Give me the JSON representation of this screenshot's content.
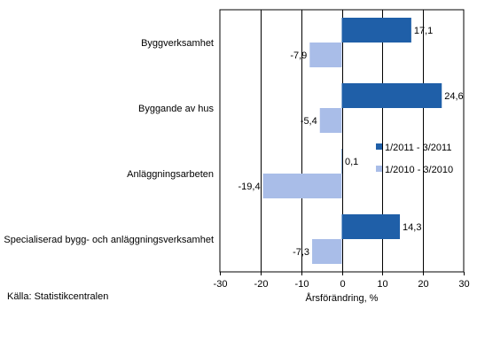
{
  "chart_data": {
    "type": "bar",
    "orientation": "horizontal",
    "categories": [
      "Byggverksamhet",
      "Byggande av hus",
      "Anläggningsarbeten",
      "Specialiserad bygg- och anläggningsverksamhet"
    ],
    "series": [
      {
        "name": "1/2011 - 3/2011",
        "values": [
          17.1,
          24.6,
          0.1,
          14.3
        ],
        "labels": [
          "17,1",
          "24,6",
          "0,1",
          "14,3"
        ],
        "color": "#1f5fa8"
      },
      {
        "name": "1/2010 - 3/2010",
        "values": [
          -7.9,
          -5.4,
          -19.4,
          -7.3
        ],
        "labels": [
          "-7,9",
          "-5,4",
          "-19,4",
          "-7,3"
        ],
        "color": "#a9bde8"
      }
    ],
    "xlim": [
      -30,
      30
    ],
    "xticks": [
      -30,
      -20,
      -10,
      0,
      10,
      20,
      30
    ],
    "xtick_labels": [
      "-30",
      "-20",
      "-10",
      "0",
      "10",
      "20",
      "30"
    ],
    "xlabel": "Årsförändring, %",
    "grid": "vertical lines",
    "legend_position": "right, inside plot"
  },
  "source": "Källa: Statistikcentralen"
}
